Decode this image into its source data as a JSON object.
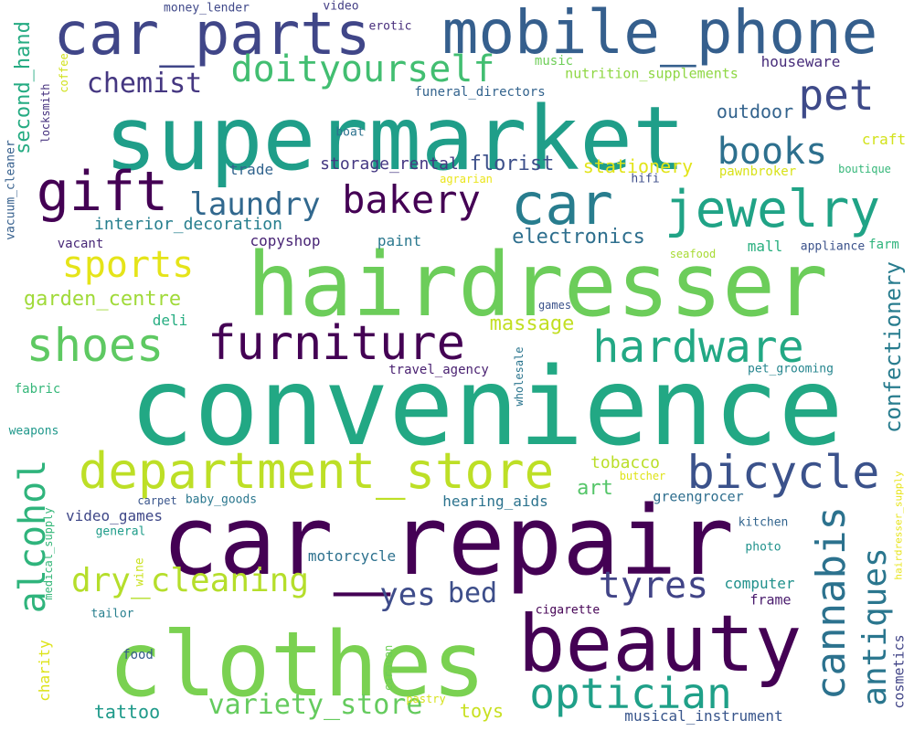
{
  "words": [
    {
      "text": "convenience",
      "color": "#22a884"
    },
    {
      "text": "car_repair",
      "color": "#440154"
    },
    {
      "text": "hairdresser",
      "color": "#6ccd5a"
    },
    {
      "text": "supermarket",
      "color": "#1f9e89"
    },
    {
      "text": "clothes",
      "color": "#7ad151"
    },
    {
      "text": "beauty",
      "color": "#440154"
    },
    {
      "text": "mobile_phone",
      "color": "#355f8d"
    },
    {
      "text": "car_parts",
      "color": "#404688"
    },
    {
      "text": "car",
      "color": "#287d8e"
    },
    {
      "text": "gift",
      "color": "#440154"
    },
    {
      "text": "jewelry",
      "color": "#20a386"
    },
    {
      "text": "department_store",
      "color": "#bddf26"
    },
    {
      "text": "furniture",
      "color": "#440154"
    },
    {
      "text": "shoes",
      "color": "#5ec962"
    },
    {
      "text": "hardware",
      "color": "#22a884"
    },
    {
      "text": "bicycle",
      "color": "#3b528b"
    },
    {
      "text": "optician",
      "color": "#1fa088"
    },
    {
      "text": "doityourself",
      "color": "#42be71"
    },
    {
      "text": "bakery",
      "color": "#440154"
    },
    {
      "text": "pet",
      "color": "#3e4a89"
    },
    {
      "text": "books",
      "color": "#2d708e"
    },
    {
      "text": "sports",
      "color": "#e5e419"
    },
    {
      "text": "laundry",
      "color": "#31688e"
    },
    {
      "text": "dry_cleaning",
      "color": "#b5de2b"
    },
    {
      "text": "tyres",
      "color": "#414487"
    },
    {
      "text": "cannabis",
      "color": "#2c728e"
    },
    {
      "text": "antiques",
      "color": "#2a768e"
    },
    {
      "text": "alcohol",
      "color": "#2fb47c"
    },
    {
      "text": "variety_store",
      "color": "#65cb5e"
    },
    {
      "text": "chemist",
      "color": "#453781"
    },
    {
      "text": "confectionery",
      "color": "#287c8e"
    },
    {
      "text": "second_hand",
      "color": "#25ab82"
    },
    {
      "text": "yes",
      "color": "#3e4c8a"
    },
    {
      "text": "bed",
      "color": "#3d4e8a"
    },
    {
      "text": "garden_centre",
      "color": "#a0da39"
    },
    {
      "text": "electronics",
      "color": "#2e6f8e"
    },
    {
      "text": "massage",
      "color": "#c2df23"
    },
    {
      "text": "interior_decoration",
      "color": "#277f8e"
    },
    {
      "text": "storage_rental",
      "color": "#453882"
    },
    {
      "text": "florist",
      "color": "#3c4f8a"
    },
    {
      "text": "stationery",
      "color": "#e2e418"
    },
    {
      "text": "tattoo",
      "color": "#1f9a8a"
    },
    {
      "text": "toys",
      "color": "#c8e020"
    },
    {
      "text": "art",
      "color": "#54c568"
    },
    {
      "text": "tobacco",
      "color": "#bade28"
    },
    {
      "text": "outdoor",
      "color": "#33638d"
    },
    {
      "text": "houseware",
      "color": "#472c7a"
    },
    {
      "text": "musical_instrument",
      "color": "#39568c"
    },
    {
      "text": "copyshop",
      "color": "#482475"
    },
    {
      "text": "paint",
      "color": "#2a788e"
    },
    {
      "text": "trade",
      "color": "#32648e"
    },
    {
      "text": "deli",
      "color": "#26ad81"
    },
    {
      "text": "travel_agency",
      "color": "#481f70"
    },
    {
      "text": "video_games",
      "color": "#3f4788"
    },
    {
      "text": "hearing_aids",
      "color": "#2c738e"
    },
    {
      "text": "motorcycle",
      "color": "#2d718e"
    },
    {
      "text": "computer",
      "color": "#21918c"
    },
    {
      "text": "charity",
      "color": "#dde318"
    },
    {
      "text": "cosmetics",
      "color": "#414487"
    },
    {
      "text": "mall",
      "color": "#29af7f"
    },
    {
      "text": "greengrocer",
      "color": "#2e6e8e"
    },
    {
      "text": "frame",
      "color": "#481a6c"
    },
    {
      "text": "fabric",
      "color": "#35b779"
    },
    {
      "text": "nutrition_supplements",
      "color": "#8fd744"
    },
    {
      "text": "funeral_directors",
      "color": "#33638d"
    },
    {
      "text": "music",
      "color": "#6ece58"
    },
    {
      "text": "craft",
      "color": "#d2e21b"
    },
    {
      "text": "pawnbroker",
      "color": "#d8e219"
    },
    {
      "text": "boutique",
      "color": "#35b779"
    },
    {
      "text": "hifi",
      "color": "#3d4d8a"
    },
    {
      "text": "agrarian",
      "color": "#eae51a"
    },
    {
      "text": "boat",
      "color": "#2c728e"
    },
    {
      "text": "erotic",
      "color": "#472d7b"
    },
    {
      "text": "video",
      "color": "#433e85"
    },
    {
      "text": "money_lender",
      "color": "#3f4889"
    },
    {
      "text": "coffee",
      "color": "#d0e11c"
    },
    {
      "text": "locksmith",
      "color": "#46327e"
    },
    {
      "text": "vacuum_cleaner",
      "color": "#355f8d"
    },
    {
      "text": "vacant",
      "color": "#482878"
    },
    {
      "text": "appliance",
      "color": "#3b528b"
    },
    {
      "text": "farm",
      "color": "#2fb47c"
    },
    {
      "text": "seafood",
      "color": "#a8db34"
    },
    {
      "text": "games",
      "color": "#3b528b"
    },
    {
      "text": "wholesale",
      "color": "#2b758e"
    },
    {
      "text": "pet_grooming",
      "color": "#25858e"
    },
    {
      "text": "weapons",
      "color": "#1f988b"
    },
    {
      "text": "butcher",
      "color": "#dfe318"
    },
    {
      "text": "carpet",
      "color": "#39558c"
    },
    {
      "text": "baby_goods",
      "color": "#2a778e"
    },
    {
      "text": "general",
      "color": "#1e9c89"
    },
    {
      "text": "medical_supply",
      "color": "#35b779"
    },
    {
      "text": "wine",
      "color": "#cae11f"
    },
    {
      "text": "tailor",
      "color": "#277f8e"
    },
    {
      "text": "food",
      "color": "#365c8d"
    },
    {
      "text": "caravan",
      "color": "#6ece58"
    },
    {
      "text": "pastry",
      "color": "#d5e21a"
    },
    {
      "text": "cigarette",
      "color": "#440154"
    },
    {
      "text": "kitchen",
      "color": "#32658e"
    },
    {
      "text": "photo",
      "color": "#20928c"
    },
    {
      "text": "hairdresser_supply",
      "color": "#e7e419"
    }
  ]
}
